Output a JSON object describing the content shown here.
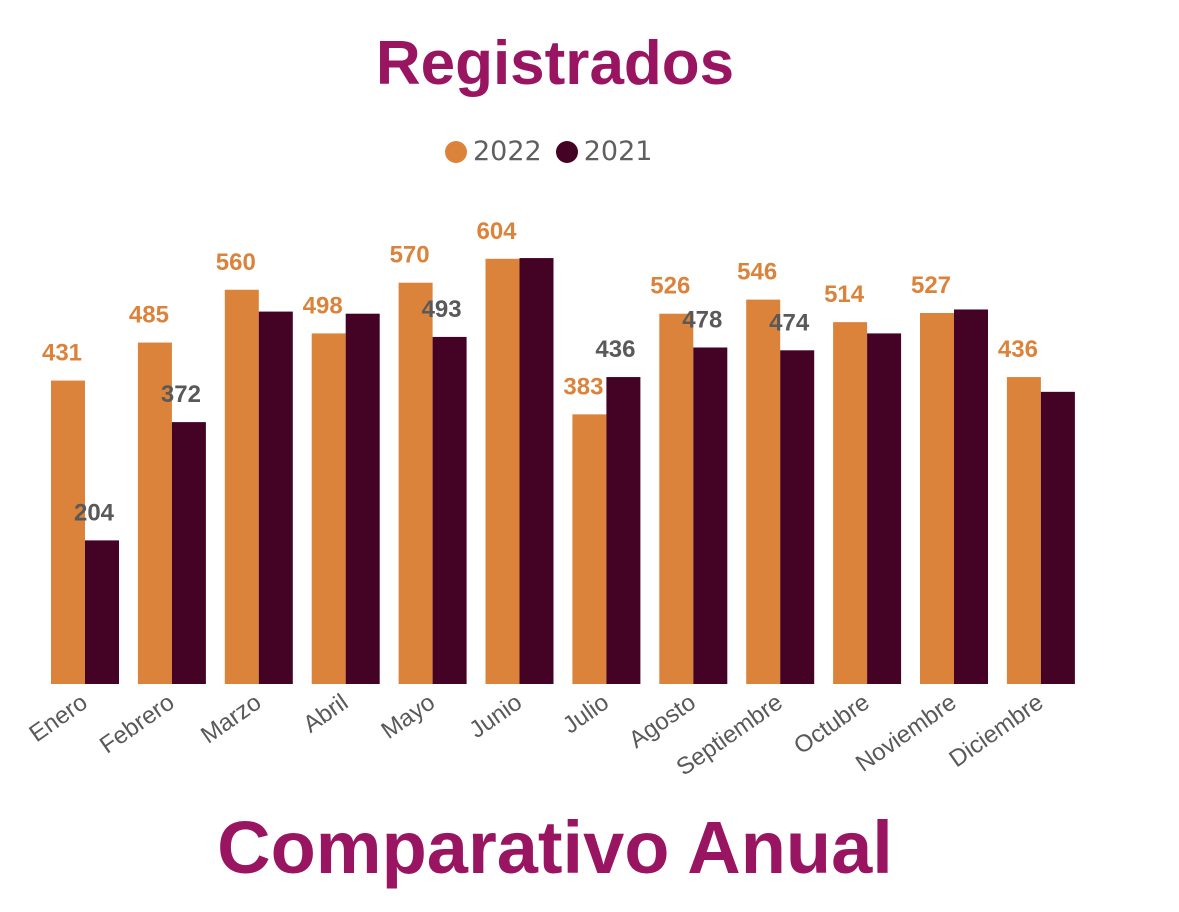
{
  "chart_data": {
    "type": "bar",
    "title": "Registrados",
    "subtitle": "Comparativo Anual",
    "categories": [
      "Enero",
      "Febrero",
      "Marzo",
      "Abril",
      "Mayo",
      "Junio",
      "Julio",
      "Agosto",
      "Septiembre",
      "Octubre",
      "Noviembre",
      "Diciembre"
    ],
    "series": [
      {
        "name": "2022",
        "color": "#db833b",
        "label_color": "#db833b",
        "values": [
          431,
          485,
          560,
          498,
          570,
          604,
          383,
          526,
          546,
          514,
          527,
          436
        ],
        "labels_shown": [
          true,
          true,
          true,
          true,
          true,
          true,
          true,
          true,
          true,
          true,
          true,
          true
        ]
      },
      {
        "name": "2021",
        "color": "#440324",
        "label_color": "#595959",
        "values": [
          204,
          372,
          529,
          526,
          493,
          605,
          436,
          478,
          474,
          498,
          532,
          415
        ],
        "labels_shown": [
          true,
          true,
          false,
          false,
          true,
          false,
          true,
          true,
          true,
          false,
          false,
          false
        ]
      }
    ],
    "ylim": [
      0,
      650
    ],
    "grid": false,
    "legend_position": "top-center",
    "xlabel": "",
    "ylabel": ""
  }
}
